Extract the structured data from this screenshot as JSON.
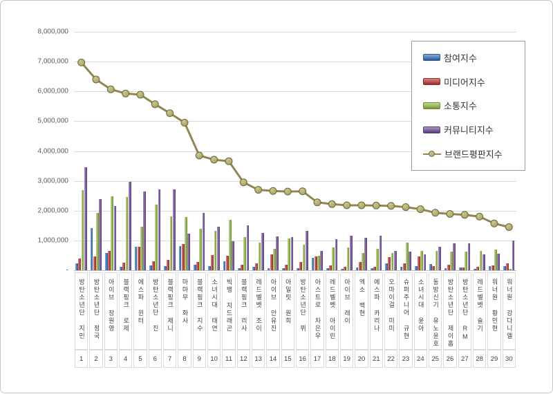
{
  "chart_data": {
    "type": "combo",
    "title": "",
    "grid": true,
    "legend_position": "top-right",
    "categories": [
      "방탄소년단 지민",
      "방탄소년단 정국",
      "아이브 장원영",
      "블랙핑크 로제",
      "에스파 윈터",
      "방탄소년단 진",
      "블랙핑크 제니",
      "마마무 화사",
      "블랙핑크 지수",
      "소녀시대 태연",
      "빅뱅 지드래곤",
      "블랙핑크 리사",
      "레드벨벳 조이",
      "아이브 안유진",
      "아일릿 원희",
      "방탄소년단 뷔",
      "아스트로 차은우",
      "레드벨벳 아이린",
      "아이브 레이",
      "엑소 백현",
      "에스파 카리나",
      "오마이걸 미미",
      "슈퍼주니어 규현",
      "소녀시대 윤아",
      "동방신기 유노윤호",
      "방탄소년단 제이홉",
      "방탄소년단 RM",
      "레드벨벳 슬기",
      "워너원 황민현",
      "워너원 강다니엘"
    ],
    "category_numbers": [
      "1",
      "2",
      "3",
      "4",
      "5",
      "6",
      "7",
      "8",
      "9",
      "10",
      "11",
      "12",
      "13",
      "14",
      "15",
      "16",
      "17",
      "18",
      "19",
      "20",
      "21",
      "22",
      "23",
      "24",
      "25",
      "26",
      "27",
      "28",
      "29",
      "30"
    ],
    "series": [
      {
        "name": "참여지수",
        "chart_type": "bar",
        "color": "#4F81BD",
        "color_light": "#87ABD6",
        "color_dark": "#2F568C",
        "values": [
          230000,
          1410000,
          580000,
          120000,
          790000,
          170000,
          130000,
          810000,
          190000,
          140000,
          300000,
          80000,
          120000,
          80000,
          80000,
          60000,
          420000,
          60000,
          50000,
          100000,
          70000,
          230000,
          120000,
          150000,
          200000,
          60000,
          100000,
          50000,
          130000,
          130000
        ]
      },
      {
        "name": "미디어지수",
        "chart_type": "bar",
        "color": "#C0504D",
        "color_light": "#D68884",
        "color_dark": "#8C2E2C",
        "values": [
          400000,
          460000,
          660000,
          260000,
          780000,
          300000,
          350000,
          890000,
          280000,
          510000,
          480000,
          190000,
          230000,
          530000,
          180000,
          270000,
          460000,
          160000,
          120000,
          270000,
          120000,
          440000,
          230000,
          460000,
          150000,
          190000,
          100000,
          120000,
          160000,
          230000
        ]
      },
      {
        "name": "소통지수",
        "chart_type": "bar",
        "color": "#9BBB59",
        "color_light": "#C3D69B",
        "color_dark": "#6F8F32",
        "values": [
          2680000,
          1930000,
          2470000,
          2450000,
          1470000,
          2200000,
          1820000,
          1790000,
          1380000,
          1330000,
          1700000,
          1120000,
          930000,
          720000,
          1060000,
          850000,
          480000,
          770000,
          770000,
          580000,
          720000,
          580000,
          930000,
          660000,
          650000,
          620000,
          620000,
          660000,
          700000,
          50000
        ]
      },
      {
        "name": "커뮤니티지수",
        "chart_type": "bar",
        "color": "#8064A2",
        "color_light": "#AD96C6",
        "color_dark": "#573F75",
        "values": [
          3460000,
          2380000,
          2160000,
          2960000,
          2640000,
          2720000,
          2720000,
          1240000,
          1930000,
          1470000,
          970000,
          1510000,
          1250000,
          1140000,
          1120000,
          1320000,
          650000,
          1040000,
          1160000,
          1080000,
          1160000,
          660000,
          620000,
          540000,
          800000,
          910000,
          910000,
          530000,
          550000,
          1000000
        ]
      },
      {
        "name": "브랜드평판지수",
        "chart_type": "line",
        "color": "#8F8752",
        "marker_fill": "#A9A264",
        "marker_highlight": "#CBC591",
        "marker_stroke": "#6E683C",
        "values": [
          6970000,
          6400000,
          6070000,
          5930000,
          5890000,
          5570000,
          5270000,
          4950000,
          3850000,
          3710000,
          3660000,
          2950000,
          2700000,
          2660000,
          2640000,
          2650000,
          2280000,
          2220000,
          2180000,
          2180000,
          2170000,
          2160000,
          2120000,
          2050000,
          1930000,
          1890000,
          1860000,
          1800000,
          1570000,
          1450000
        ]
      }
    ],
    "y_axis": {
      "min": 0,
      "max": 8000000,
      "step": 1000000,
      "tick_labels": [
        "-",
        "1,000,000",
        "2,000,000",
        "3,000,000",
        "4,000,000",
        "5,000,000",
        "6,000,000",
        "7,000,000",
        "8,000,000"
      ]
    }
  }
}
